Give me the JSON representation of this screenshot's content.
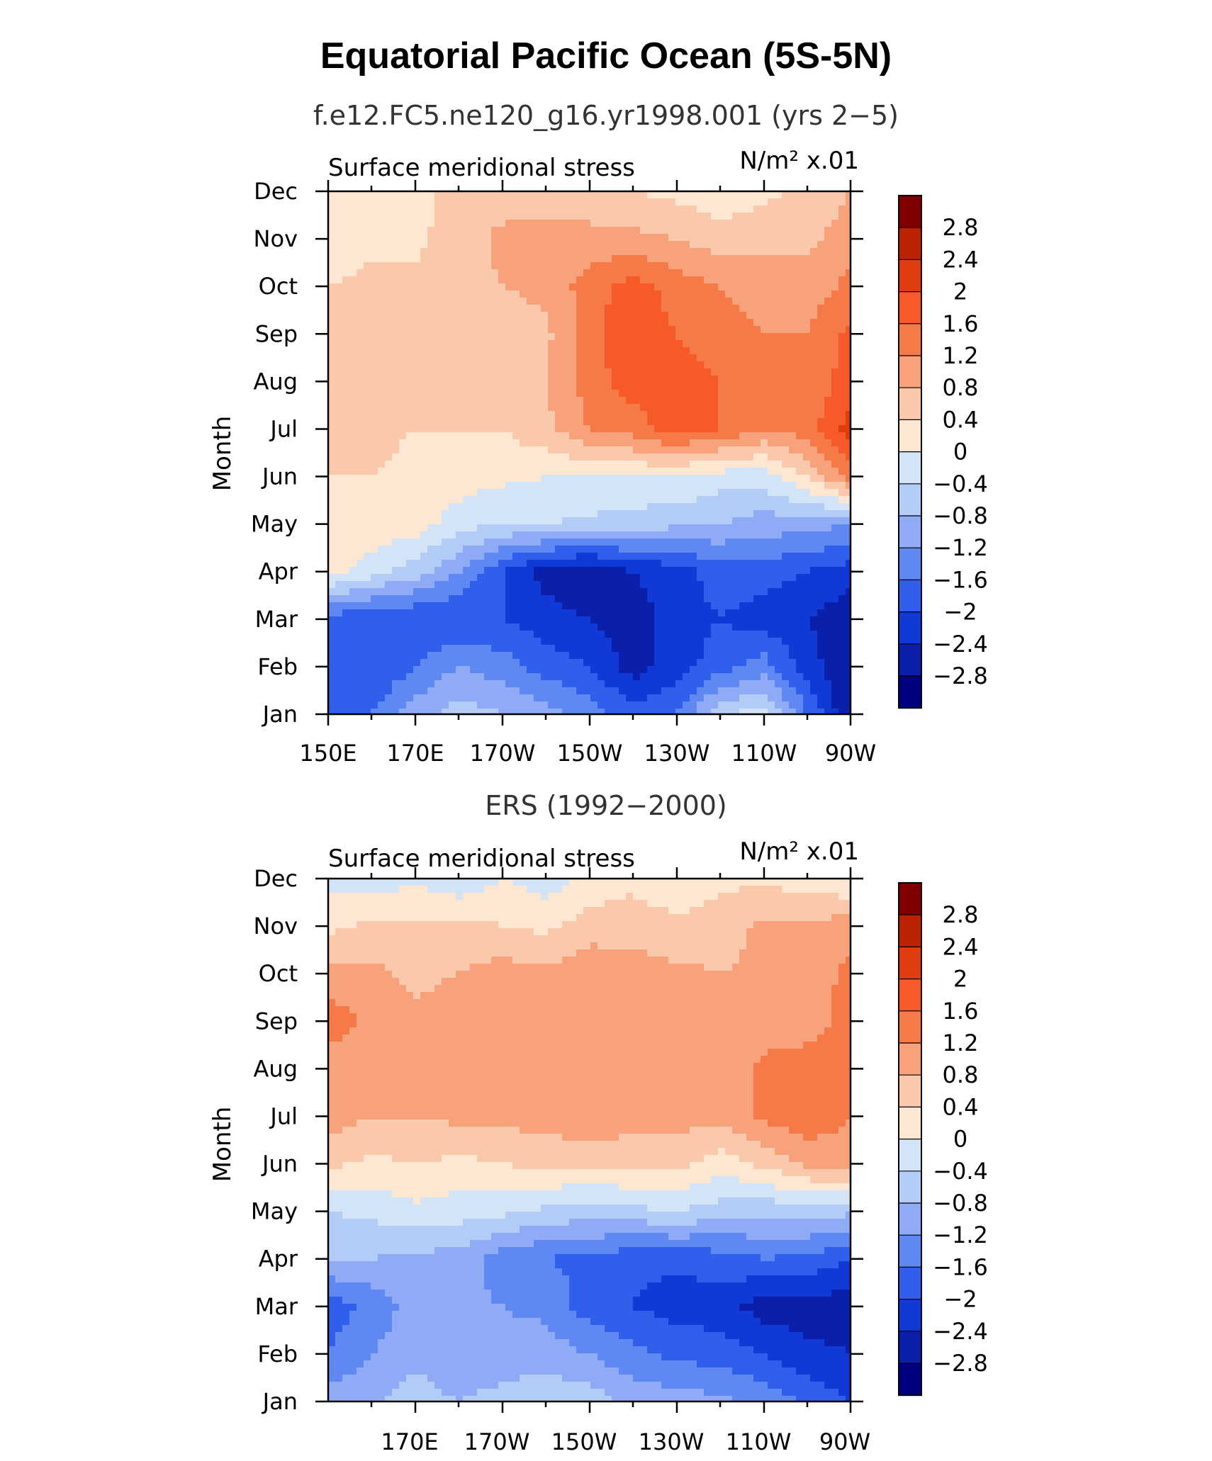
{
  "title": "Equatorial Pacific Ocean (5S-5N)",
  "panels": [
    {
      "name": "model",
      "subtitle": "f.e12.FC5.ne120_g16.yr1998.001 (yrs 2−5)",
      "field_label": "Surface meridional stress",
      "units_label": "N/m² x.01",
      "ylabel": "Month",
      "months": [
        "Jan",
        "Feb",
        "Mar",
        "Apr",
        "May",
        "Jun",
        "Jul",
        "Aug",
        "Sep",
        "Oct",
        "Nov",
        "Dec"
      ],
      "xtick_labels": [
        "150E",
        "170E",
        "170W",
        "150W",
        "130W",
        "110W",
        "90W"
      ]
    },
    {
      "name": "observed",
      "subtitle": "ERS (1992−2000)",
      "field_label": "Surface meridional stress",
      "units_label": "N/m² x.01",
      "ylabel": "Month",
      "months": [
        "Jan",
        "Feb",
        "Mar",
        "Apr",
        "May",
        "Jun",
        "Jul",
        "Aug",
        "Sep",
        "Oct",
        "Nov",
        "Dec"
      ],
      "xtick_labels": [
        "170E",
        "170W",
        "150W",
        "130W",
        "110W",
        "90W"
      ]
    }
  ],
  "colorbar": {
    "labels": [
      "2.8",
      "2.4",
      "2",
      "1.6",
      "1.2",
      "0.8",
      "0.4",
      "0",
      "−0.4",
      "−0.8",
      "−1.2",
      "−1.6",
      "−2",
      "−2.4",
      "−2.8"
    ],
    "colors": [
      "#800000",
      "#bb2200",
      "#e03c10",
      "#f55a28",
      "#f57a48",
      "#f8a27c",
      "#fac8aa",
      "#fde6d2",
      "#d2e4f6",
      "#b2ccf5",
      "#8fabf5",
      "#6088f2",
      "#3060eb",
      "#1039d6",
      "#0a20aa",
      "#000080"
    ]
  },
  "chart_data": [
    {
      "type": "heatmap",
      "title": "f.e12.FC5.ne120_g16.yr1998.001 (yrs 2−5)",
      "field": "Surface meridional stress",
      "units": "N/m² x.01",
      "x": [
        "150E",
        "160E",
        "170E",
        "180",
        "170W",
        "160W",
        "150W",
        "140W",
        "130W",
        "120W",
        "110W",
        "100W",
        "90W"
      ],
      "y": [
        "Jan",
        "Feb",
        "Mar",
        "Apr",
        "May",
        "Jun",
        "Jul",
        "Aug",
        "Sep",
        "Oct",
        "Nov",
        "Dec"
      ],
      "ylabel": "Month",
      "levels": [
        -2.8,
        -2.4,
        -2.0,
        -1.6,
        -1.2,
        -0.8,
        -0.4,
        0,
        0.4,
        0.8,
        1.2,
        1.6,
        2.0,
        2.4,
        2.8
      ],
      "z": [
        [
          -1.9,
          -1.6,
          -1.0,
          -0.6,
          -0.8,
          -1.0,
          -1.4,
          -1.8,
          -1.6,
          -0.5,
          -0.2,
          -1.6,
          -2.8
        ],
        [
          -2.0,
          -2.0,
          -1.6,
          -1.2,
          -1.4,
          -1.8,
          -2.0,
          -2.6,
          -2.2,
          -1.8,
          -1.4,
          -2.2,
          -2.8
        ],
        [
          -1.8,
          -2.0,
          -2.0,
          -2.0,
          -2.0,
          -2.2,
          -2.4,
          -2.6,
          -2.2,
          -2.0,
          -2.2,
          -2.4,
          -2.7
        ],
        [
          0.2,
          -0.2,
          -0.6,
          -1.2,
          -2.0,
          -2.6,
          -2.8,
          -2.4,
          -2.2,
          -1.8,
          -1.8,
          -2.0,
          -2.2
        ],
        [
          0.3,
          0.3,
          0.2,
          -0.2,
          -0.4,
          -0.4,
          -0.5,
          -0.6,
          -0.7,
          -0.8,
          -1.0,
          -1.0,
          -1.2
        ],
        [
          0.4,
          0.4,
          0.3,
          0.2,
          0.1,
          0.0,
          0.0,
          0.0,
          0.0,
          -0.2,
          -0.2,
          0.4,
          1.4
        ],
        [
          0.5,
          0.5,
          0.4,
          0.4,
          0.4,
          0.7,
          1.2,
          1.4,
          1.8,
          1.6,
          1.2,
          1.4,
          2.2
        ],
        [
          0.6,
          0.6,
          0.7,
          0.5,
          0.5,
          0.8,
          1.4,
          1.8,
          1.8,
          1.6,
          1.3,
          1.3,
          1.8
        ],
        [
          0.4,
          0.5,
          0.5,
          0.5,
          0.6,
          0.7,
          1.4,
          2.0,
          1.6,
          1.4,
          1.2,
          1.2,
          1.7
        ],
        [
          0.4,
          0.5,
          0.5,
          0.6,
          0.8,
          0.9,
          1.4,
          1.8,
          1.4,
          1.2,
          1.0,
          1.0,
          1.3
        ],
        [
          0.2,
          0.3,
          0.3,
          0.6,
          0.9,
          0.9,
          0.9,
          0.9,
          0.8,
          0.6,
          0.7,
          0.7,
          1.0
        ],
        [
          0.0,
          0.2,
          0.3,
          0.5,
          0.6,
          0.6,
          0.6,
          0.4,
          0.3,
          0.1,
          0.3,
          0.5,
          0.8
        ]
      ]
    },
    {
      "type": "heatmap",
      "title": "ERS (1992−2000)",
      "field": "Surface meridional stress",
      "units": "N/m² x.01",
      "x": [
        "150E",
        "160E",
        "170E",
        "180",
        "170W",
        "160W",
        "150W",
        "140W",
        "130W",
        "120W",
        "110W",
        "100W",
        "90W"
      ],
      "y": [
        "Jan",
        "Feb",
        "Mar",
        "Apr",
        "May",
        "Jun",
        "Jul",
        "Aug",
        "Sep",
        "Oct",
        "Nov",
        "Dec"
      ],
      "ylabel": "Month",
      "levels": [
        -2.8,
        -2.4,
        -2.0,
        -1.6,
        -1.2,
        -0.8,
        -0.4,
        0,
        0.4,
        0.8,
        1.2,
        1.6,
        2.0,
        2.4,
        2.8
      ],
      "z": [
        [
          -1.0,
          -0.9,
          -0.6,
          -0.8,
          -0.6,
          -0.5,
          -0.6,
          -0.9,
          -1.0,
          -1.1,
          -1.3,
          -1.7,
          -2.0
        ],
        [
          -1.6,
          -1.2,
          -0.9,
          -1.2,
          -1.1,
          -1.0,
          -1.2,
          -1.5,
          -1.7,
          -1.8,
          -2.0,
          -2.3,
          -2.4
        ],
        [
          -1.8,
          -1.5,
          -1.0,
          -1.1,
          -1.2,
          -1.3,
          -1.8,
          -2.0,
          -2.2,
          -2.2,
          -2.6,
          -2.6,
          -2.6
        ],
        [
          -0.8,
          -0.8,
          -0.9,
          -1.0,
          -1.4,
          -1.6,
          -1.7,
          -1.9,
          -1.9,
          -1.8,
          -1.6,
          -1.7,
          -2.0
        ],
        [
          -0.4,
          -0.3,
          -0.1,
          -0.2,
          -0.3,
          -0.5,
          -0.6,
          -0.5,
          -0.4,
          -0.6,
          -0.7,
          -0.6,
          -0.7
        ],
        [
          0.5,
          0.3,
          0.4,
          0.3,
          0.4,
          0.5,
          0.5,
          0.5,
          0.5,
          0.2,
          0.5,
          0.9,
          1.0
        ],
        [
          1.0,
          0.8,
          0.8,
          0.9,
          0.9,
          1.0,
          1.1,
          1.0,
          1.0,
          0.9,
          1.3,
          1.5,
          1.2
        ],
        [
          1.0,
          1.0,
          0.9,
          1.1,
          1.1,
          1.0,
          1.1,
          1.0,
          1.1,
          0.9,
          1.3,
          1.3,
          1.2
        ],
        [
          1.4,
          1.1,
          0.9,
          1.0,
          1.0,
          1.1,
          1.0,
          1.0,
          0.9,
          0.8,
          1.0,
          1.1,
          1.3
        ],
        [
          1.0,
          0.9,
          0.7,
          0.8,
          1.0,
          0.9,
          1.1,
          1.0,
          0.9,
          0.8,
          0.9,
          1.0,
          1.3
        ],
        [
          0.3,
          0.5,
          0.5,
          0.5,
          0.4,
          0.3,
          0.6,
          0.6,
          0.5,
          0.6,
          0.9,
          0.9,
          1.0
        ],
        [
          -0.1,
          -0.2,
          -0.1,
          -0.3,
          0.0,
          -0.2,
          0.1,
          0.3,
          0.1,
          0.3,
          0.3,
          0.2,
          0.0
        ]
      ]
    }
  ]
}
